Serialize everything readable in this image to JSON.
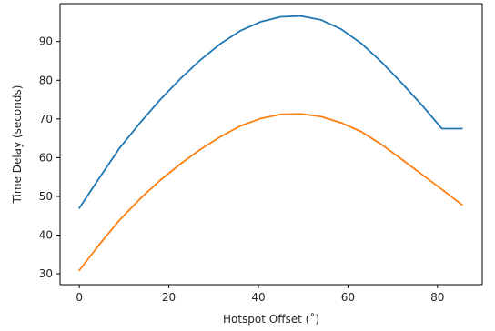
{
  "chart_data": {
    "type": "line",
    "title": "",
    "xlabel": "Hotspot Offset (˚)",
    "ylabel": "Time Delay (seconds)",
    "xlim": [
      -4.3,
      90.0
    ],
    "ylim": [
      27.2,
      99.8
    ],
    "xticks": [
      0,
      20,
      40,
      60,
      80
    ],
    "yticks": [
      30,
      40,
      50,
      60,
      70,
      80,
      90
    ],
    "grid": false,
    "legend": "none",
    "series": [
      {
        "color": "#1f77b4",
        "x": [
          0,
          4.5,
          9,
          13.5,
          18,
          22.5,
          27,
          31.5,
          36,
          40.5,
          45,
          49.5,
          54,
          58.5,
          63,
          67.5,
          72,
          76.5,
          81,
          85.5
        ],
        "y": [
          47.0,
          54.8,
          62.5,
          68.9,
          74.9,
          80.3,
          85.2,
          89.4,
          92.8,
          95.1,
          96.4,
          96.6,
          95.6,
          93.2,
          89.5,
          84.7,
          79.3,
          73.6,
          67.5,
          67.5
        ]
      },
      {
        "color": "#ff7f0e",
        "x": [
          0,
          4.5,
          9,
          13.5,
          18,
          22.5,
          27,
          31.5,
          36,
          40.5,
          45,
          49.5,
          54,
          58.5,
          63,
          67.5,
          72,
          76.5,
          81,
          85.5
        ],
        "y": [
          30.9,
          37.6,
          43.9,
          49.3,
          54.1,
          58.3,
          62.1,
          65.4,
          68.2,
          70.1,
          71.2,
          71.3,
          70.6,
          69.0,
          66.7,
          63.4,
          59.6,
          55.7,
          51.8,
          47.8
        ]
      }
    ]
  }
}
